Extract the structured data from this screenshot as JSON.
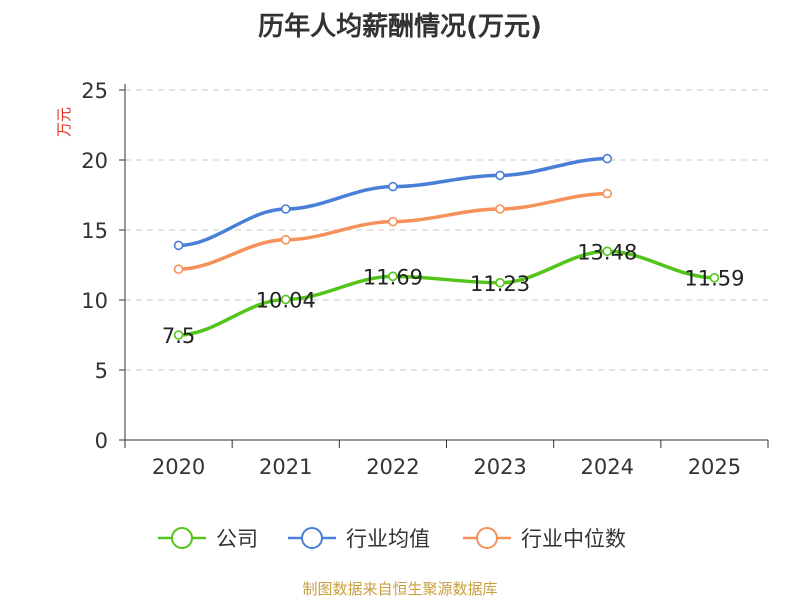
{
  "chart_data": {
    "type": "line",
    "title": "历年人均薪酬情况(万元)",
    "xlabel": "",
    "ylabel": "万元",
    "categories": [
      "2020",
      "2021",
      "2022",
      "2023",
      "2024",
      "2025"
    ],
    "ylim": [
      0,
      25
    ],
    "yticks": [
      0,
      5,
      10,
      15,
      20,
      25
    ],
    "grid": true,
    "legend_position": "bottom",
    "series": [
      {
        "name": "公司",
        "color": "#52c41a",
        "values": [
          7.5,
          10.04,
          11.69,
          11.23,
          13.48,
          11.59
        ],
        "labels": [
          "7.5",
          "10.04",
          "11.69",
          "11.23",
          "13.48",
          "11.59"
        ]
      },
      {
        "name": "行业均值",
        "color": "#4a7fd8",
        "values": [
          13.9,
          16.5,
          18.1,
          18.9,
          20.1,
          null
        ],
        "labels": null
      },
      {
        "name": "行业中位数",
        "color": "#f5915a",
        "values": [
          12.2,
          14.3,
          15.6,
          16.5,
          17.6,
          null
        ],
        "labels": null
      }
    ]
  },
  "source": "制图数据来自恒生聚源数据库"
}
